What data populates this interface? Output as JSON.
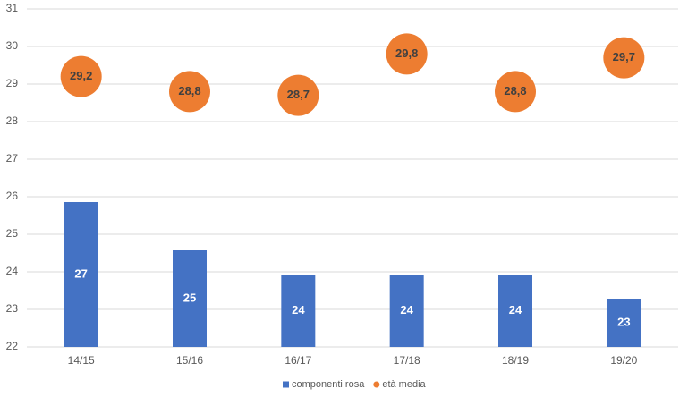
{
  "chart_data": {
    "type": "combo",
    "categories": [
      "14/15",
      "15/16",
      "16/17",
      "17/18",
      "18/19",
      "19/20"
    ],
    "ylim": [
      22,
      31
    ],
    "yticks": [
      22,
      23,
      24,
      25,
      26,
      27,
      28,
      29,
      30,
      31
    ],
    "y2lim": [
      21,
      35
    ],
    "grid": true,
    "legend": "bottom",
    "series": [
      {
        "name": "componenti rosa",
        "type": "bar",
        "color": "#4472c4",
        "axis": "y2",
        "values": [
          27,
          25,
          24,
          24,
          24,
          23
        ]
      },
      {
        "name": "età media",
        "type": "scatter",
        "color": "#ed7d31",
        "values": [
          29.2,
          28.8,
          28.7,
          29.8,
          28.8,
          29.7
        ],
        "value_labels": [
          "29,2",
          "28,8",
          "28,7",
          "29,8",
          "28,8",
          "29,7"
        ]
      }
    ]
  }
}
